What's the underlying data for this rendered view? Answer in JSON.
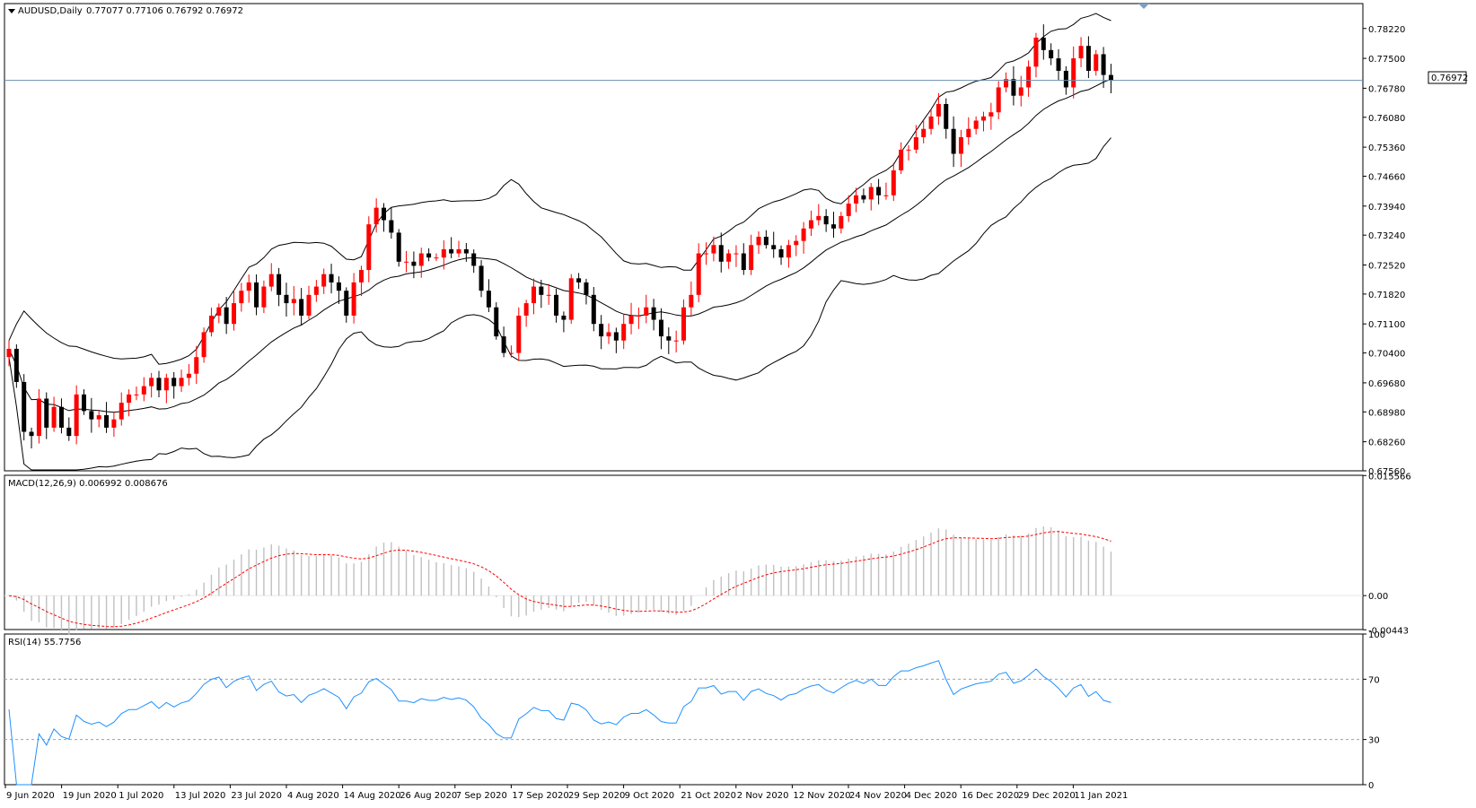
{
  "window": {
    "symbol_title": "AUDUSD,Daily",
    "ohlc": "0.77077 0.77106 0.76792 0.76972",
    "current_price_tag": "0.76972"
  },
  "colors": {
    "bull_candle": "#ff0000",
    "bear_candle": "#000000",
    "bands": "#000000",
    "price_line": "#6e8fb0",
    "macd_hist": "#c0c0c0",
    "macd_signal": "#ff0000",
    "rsi_line": "#1e90ff",
    "level_lines": "#a0a0a0"
  },
  "panels": {
    "macd": {
      "label": "MACD(12,26,9) 0.006992 0.008676"
    },
    "rsi": {
      "label": "RSI(14) 55.7756"
    }
  },
  "chart_data": [
    {
      "type": "candlestick",
      "title": "AUDUSD,Daily",
      "overlays": [
        "Bollinger Bands (upper, middle, lower)"
      ],
      "ylim": [
        0.6756,
        0.7882
      ],
      "y_ticks": [
        "0.78220",
        "0.77500",
        "0.76780",
        "0.76080",
        "0.75360",
        "0.74660",
        "0.73940",
        "0.73240",
        "0.72520",
        "0.71820",
        "0.71100",
        "0.70400",
        "0.69680",
        "0.68980",
        "0.68260",
        "0.67560"
      ],
      "x_ticks": [
        "9 Jun 2020",
        "19 Jun 2020",
        "1 Jul 2020",
        "13 Jul 2020",
        "23 Jul 2020",
        "4 Aug 2020",
        "14 Aug 2020",
        "26 Aug 2020",
        "7 Sep 2020",
        "17 Sep 2020",
        "29 Sep 2020",
        "9 Oct 2020",
        "21 Oct 2020",
        "2 Nov 2020",
        "12 Nov 2020",
        "24 Nov 2020",
        "4 Dec 2020",
        "16 Dec 2020",
        "29 Dec 2020",
        "11 Jan 2021"
      ],
      "close_series": [
        0.705,
        0.697,
        0.685,
        0.684,
        0.693,
        0.686,
        0.691,
        0.686,
        0.684,
        0.694,
        0.69,
        0.688,
        0.689,
        0.686,
        0.688,
        0.692,
        0.694,
        0.694,
        0.696,
        0.698,
        0.695,
        0.698,
        0.696,
        0.698,
        0.699,
        0.703,
        0.709,
        0.713,
        0.715,
        0.711,
        0.716,
        0.719,
        0.721,
        0.715,
        0.72,
        0.723,
        0.718,
        0.716,
        0.717,
        0.713,
        0.718,
        0.72,
        0.723,
        0.721,
        0.719,
        0.713,
        0.721,
        0.724,
        0.735,
        0.739,
        0.736,
        0.733,
        0.726,
        0.726,
        0.725,
        0.728,
        0.727,
        0.727,
        0.729,
        0.728,
        0.729,
        0.728,
        0.725,
        0.719,
        0.715,
        0.708,
        0.704,
        0.704,
        0.713,
        0.716,
        0.72,
        0.718,
        0.718,
        0.713,
        0.712,
        0.722,
        0.721,
        0.718,
        0.711,
        0.708,
        0.709,
        0.707,
        0.711,
        0.713,
        0.713,
        0.715,
        0.712,
        0.708,
        0.707,
        0.707,
        0.715,
        0.718,
        0.728,
        0.728,
        0.73,
        0.726,
        0.728,
        0.728,
        0.724,
        0.73,
        0.732,
        0.73,
        0.729,
        0.727,
        0.73,
        0.731,
        0.734,
        0.736,
        0.737,
        0.735,
        0.734,
        0.737,
        0.74,
        0.742,
        0.741,
        0.744,
        0.742,
        0.742,
        0.748,
        0.753,
        0.753,
        0.756,
        0.758,
        0.761,
        0.764,
        0.758,
        0.752,
        0.756,
        0.758,
        0.76,
        0.761,
        0.762,
        0.768,
        0.77,
        0.766,
        0.768,
        0.773,
        0.78,
        0.777,
        0.775,
        0.772,
        0.768,
        0.775,
        0.778,
        0.772,
        0.776,
        0.771,
        0.7697
      ]
    },
    {
      "type": "bar",
      "title": "MACD(12,26,9) 0.006992 0.008676",
      "series": [
        {
          "name": "MACD"
        },
        {
          "name": "Signal"
        }
      ],
      "ylim": [
        -0.0044,
        0.0156
      ],
      "y_ticks": [
        "0.015566",
        "0.00",
        "-0.00443"
      ],
      "last_values": {
        "macd": 0.006992,
        "signal": 0.008676
      }
    },
    {
      "type": "line",
      "title": "RSI(14) 55.7756",
      "ylim": [
        0,
        100
      ],
      "y_ticks": [
        "100",
        "70",
        "30",
        "0"
      ],
      "levels": [
        70,
        30
      ],
      "last_value": 55.7756
    }
  ]
}
